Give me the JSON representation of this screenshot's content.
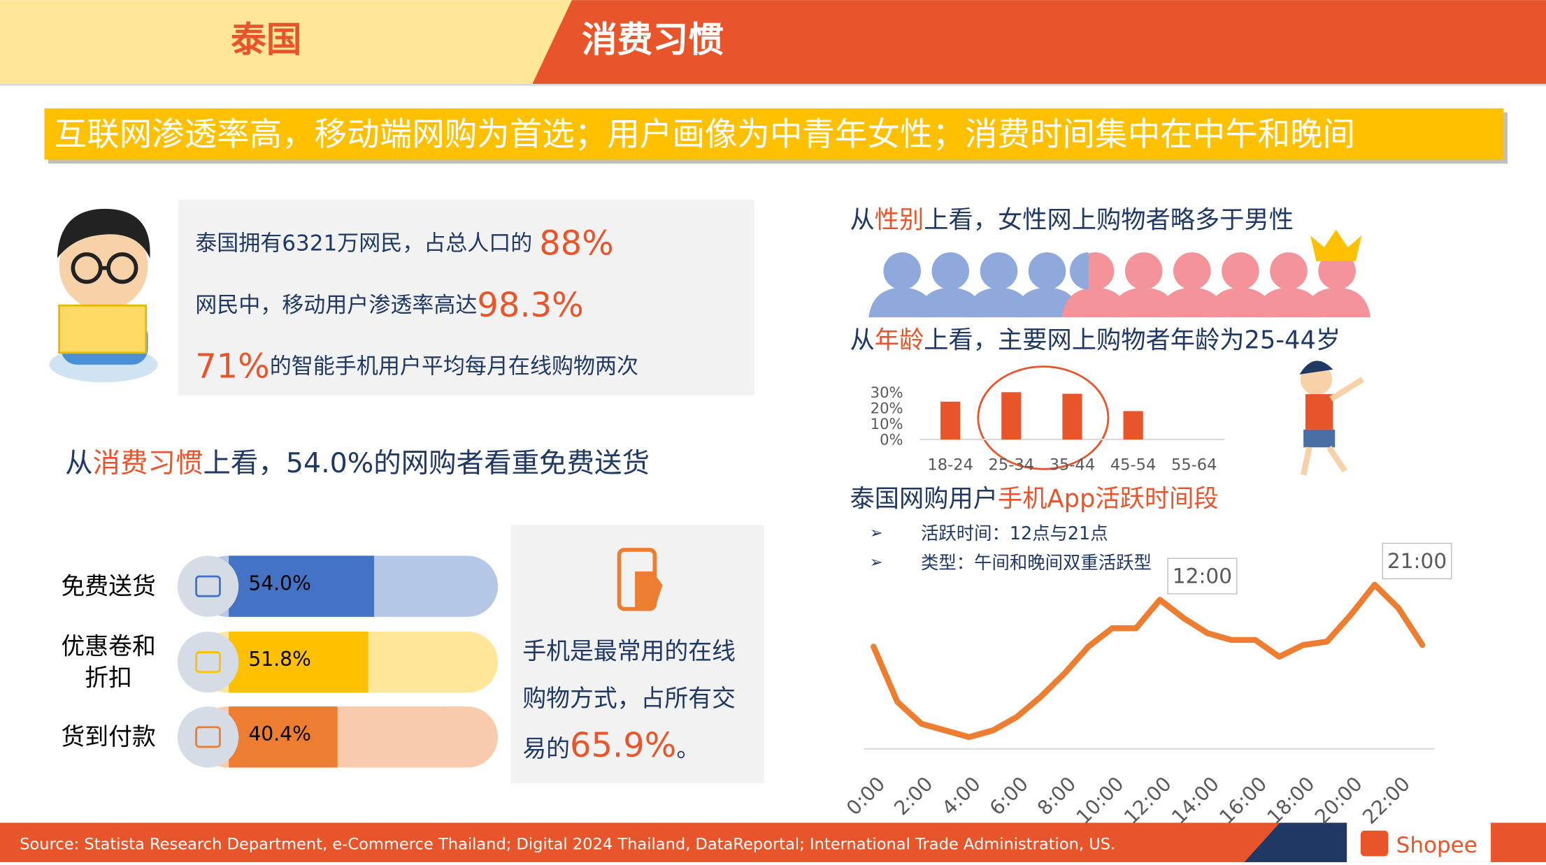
{
  "header": {
    "country": "泰国",
    "topic": "消费习惯"
  },
  "banner": "互联网渗透率高，移动端网购为首选；用户画像为中青年女性；消费时间集中在中午和晚间",
  "stats": [
    {
      "text": "泰国拥有6321万网民，占总人口的 ",
      "highlight": "88%"
    },
    {
      "text": "网民中，移动用户渗透率高达",
      "highlight": "98.3%"
    },
    {
      "highlight": "71%",
      "text": "的智能手机用户平均每月在线购物两次"
    }
  ],
  "habit_heading": {
    "pre": "从",
    "highlight": "消费习惯",
    "post": "上看，54.0%的网购者看重免费送货"
  },
  "mobile_note": {
    "text": "手机是最常用的在线购物方式，占所有交易的",
    "highlight": "65.9%",
    "end": "。"
  },
  "gender_heading": {
    "pre": "从",
    "highlight": "性别",
    "post": "上看，女性网上购物者略多于男性"
  },
  "age_heading": {
    "pre": "从",
    "highlight": "年龄",
    "post": "上看，主要网上购物者年龄为25-44岁"
  },
  "active_heading": {
    "pre": "泰国网购用户",
    "highlight": "手机App活跃时间段"
  },
  "bullets": [
    "活跃时间：12点与21点",
    "类型：午间和晚间双重活跃型"
  ],
  "source": "Source: Statista Research Department, e-Commerce Thailand; Digital 2024 Thailand, DataReportal; International Trade Administration, US.",
  "logo": "Shopee",
  "chart_data": [
    {
      "type": "hbar",
      "categories": [
        "免费送货",
        "优惠卷和折扣",
        "货到付款"
      ],
      "values": [
        54.0,
        51.8,
        40.4
      ],
      "value_labels": [
        "54.0%",
        "51.8%",
        "40.4%"
      ],
      "colors": [
        "#4472c4",
        "#ffc000",
        "#ed7d31"
      ],
      "track_colors": [
        "#b4c7e7",
        "#ffe699",
        "#f8cbad"
      ],
      "xlim": [
        0,
        100
      ]
    },
    {
      "type": "bar",
      "categories": [
        "18-24",
        "25-34",
        "35-44",
        "45-54",
        "55-64"
      ],
      "values": [
        24,
        30,
        29,
        18,
        0
      ],
      "color": "#e8552b",
      "ylim": [
        0,
        30
      ],
      "yticks": [
        {
          "value": 0,
          "label": "0%"
        },
        {
          "value": 10,
          "label": "10%"
        },
        {
          "value": 20,
          "label": "20%"
        },
        {
          "value": 30,
          "label": "30%"
        }
      ]
    },
    {
      "type": "line",
      "x": [
        0,
        1,
        2,
        3,
        4,
        5,
        6,
        7,
        8,
        9,
        10,
        11,
        12,
        13,
        14,
        15,
        16,
        17,
        18,
        19,
        20,
        21,
        22,
        23
      ],
      "values": [
        61,
        28,
        15,
        11,
        7,
        11,
        19,
        31,
        45,
        61,
        72,
        72,
        89,
        78,
        69,
        65,
        65,
        55,
        62,
        64,
        80,
        98,
        84,
        62
      ],
      "color": "#ed7d31",
      "xlim": [
        0,
        23
      ],
      "ylim": [
        0,
        100
      ],
      "xticks": [
        {
          "value": 0,
          "label": "0:00"
        },
        {
          "value": 2,
          "label": "2:00"
        },
        {
          "value": 4,
          "label": "4:00"
        },
        {
          "value": 6,
          "label": "6:00"
        },
        {
          "value": 8,
          "label": "8:00"
        },
        {
          "value": 10,
          "label": "10:00"
        },
        {
          "value": 12,
          "label": "12:00"
        },
        {
          "value": 14,
          "label": "14:00"
        },
        {
          "value": 16,
          "label": "16:00"
        },
        {
          "value": 18,
          "label": "18:00"
        },
        {
          "value": 20,
          "label": "20:00"
        },
        {
          "value": 22,
          "label": "22:00"
        }
      ],
      "annotations": [
        {
          "x": 12,
          "label": "12:00"
        },
        {
          "x": 21,
          "label": "21:00"
        }
      ]
    }
  ]
}
